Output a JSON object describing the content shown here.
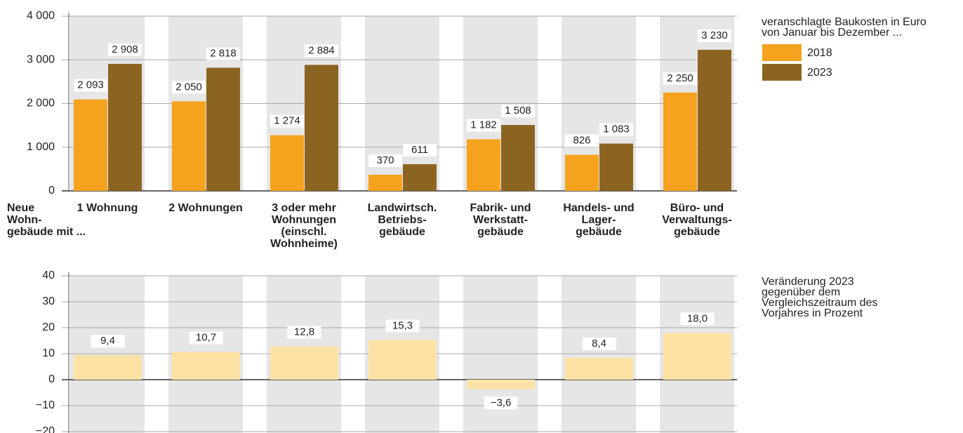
{
  "chart_data": [
    {
      "type": "bar",
      "group_label": [
        "Neue",
        "Wohn-",
        "gebäude mit ..."
      ],
      "legend_title": [
        "veranschlagte Baukosten in Euro",
        "von Januar bis Dezember ..."
      ],
      "categories": [
        [
          "1 Wohnung"
        ],
        [
          "2 Wohnungen"
        ],
        [
          "3 oder mehr",
          "Wohnungen",
          "(einschl.",
          "Wohnheime)"
        ],
        [
          "Landwirtsch.",
          "Betriebs-",
          "gebäude"
        ],
        [
          "Fabrik- und",
          "Werkstatt-",
          "gebäude"
        ],
        [
          "Handels- und",
          "Lager-",
          "gebäude"
        ],
        [
          "Büro- und",
          "Verwaltungs-",
          "gebäude"
        ]
      ],
      "series": [
        {
          "name": "2018",
          "color": "#f5a31f",
          "values": [
            2093,
            2050,
            1274,
            370,
            1182,
            826,
            2250
          ],
          "value_labels": [
            "2 093",
            "2 050",
            "1 274",
            "370",
            "1 182",
            "826",
            "2 250"
          ]
        },
        {
          "name": "2023",
          "color": "#8c6422",
          "values": [
            2908,
            2818,
            2884,
            611,
            1508,
            1083,
            3230
          ],
          "value_labels": [
            "2 908",
            "2 818",
            "2 884",
            "611",
            "1 508",
            "1 083",
            "3 230"
          ]
        }
      ],
      "ylim": [
        0,
        4000
      ],
      "yticks": [
        0,
        {
          "value": 1000,
          "label": "1 000"
        },
        {
          "value": 2000,
          "label": "2 000"
        },
        {
          "value": 3000,
          "label": "3 000"
        },
        {
          "value": 4000,
          "label": "4 000"
        }
      ],
      "grid": true
    },
    {
      "type": "bar",
      "note": [
        "Veränderung 2023",
        "gegenüber dem",
        "Vergleichszeitraum des",
        "Vorjahres in Prozent"
      ],
      "values": [
        9.4,
        10.7,
        12.8,
        15.3,
        -3.6,
        8.4,
        18.0
      ],
      "value_labels": [
        "9,4",
        "10,7",
        "12,8",
        "15,3",
        "−3,6",
        "8,4",
        "18,0"
      ],
      "color": "#fde2a6",
      "ylim": [
        -20,
        40
      ],
      "yticks": [
        {
          "value": -20,
          "label": "−20"
        },
        {
          "value": -10,
          "label": "−10"
        },
        0,
        10,
        20,
        30,
        40
      ],
      "grid": true
    }
  ]
}
